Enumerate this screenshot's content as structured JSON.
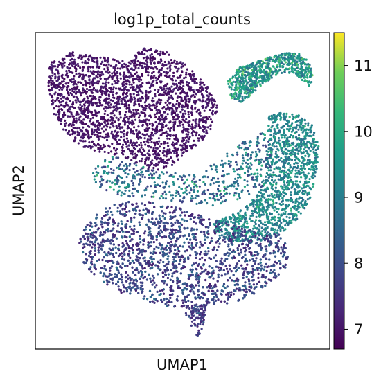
{
  "chart_data": {
    "type": "scatter",
    "title": "log1p_total_counts",
    "xlabel": "UMAP1",
    "ylabel": "UMAP2",
    "x_ticks": [],
    "y_ticks": [],
    "colorbar": {
      "label": "",
      "colormap": "viridis",
      "range": [
        6.7,
        11.5
      ],
      "ticks": [
        "7",
        "8",
        "9",
        "10",
        "11"
      ],
      "tick_values": [
        7,
        8,
        9,
        10,
        11
      ]
    },
    "series": [
      {
        "shape": "top-left lobe",
        "value_range": [
          6.8,
          7.3
        ],
        "typical_value": 7.0
      },
      {
        "shape": "top-right curved arm",
        "value_range": [
          8.5,
          10.8
        ],
        "typical_value": 9.5
      },
      {
        "shape": "middle-right band",
        "value_range": [
          8.6,
          10.3
        ],
        "typical_value": 9.2
      },
      {
        "shape": "bottom crescent",
        "value_range": [
          7.2,
          8.8
        ],
        "typical_value": 7.8
      },
      {
        "shape": "bottom tail",
        "value_range": [
          7.3,
          8.5
        ],
        "typical_value": 7.7
      },
      {
        "shape": "sparse middle",
        "value_range": [
          7.8,
          10.5
        ],
        "typical_value": 8.6
      }
    ],
    "grid": false,
    "legend": "colorbar-right"
  }
}
